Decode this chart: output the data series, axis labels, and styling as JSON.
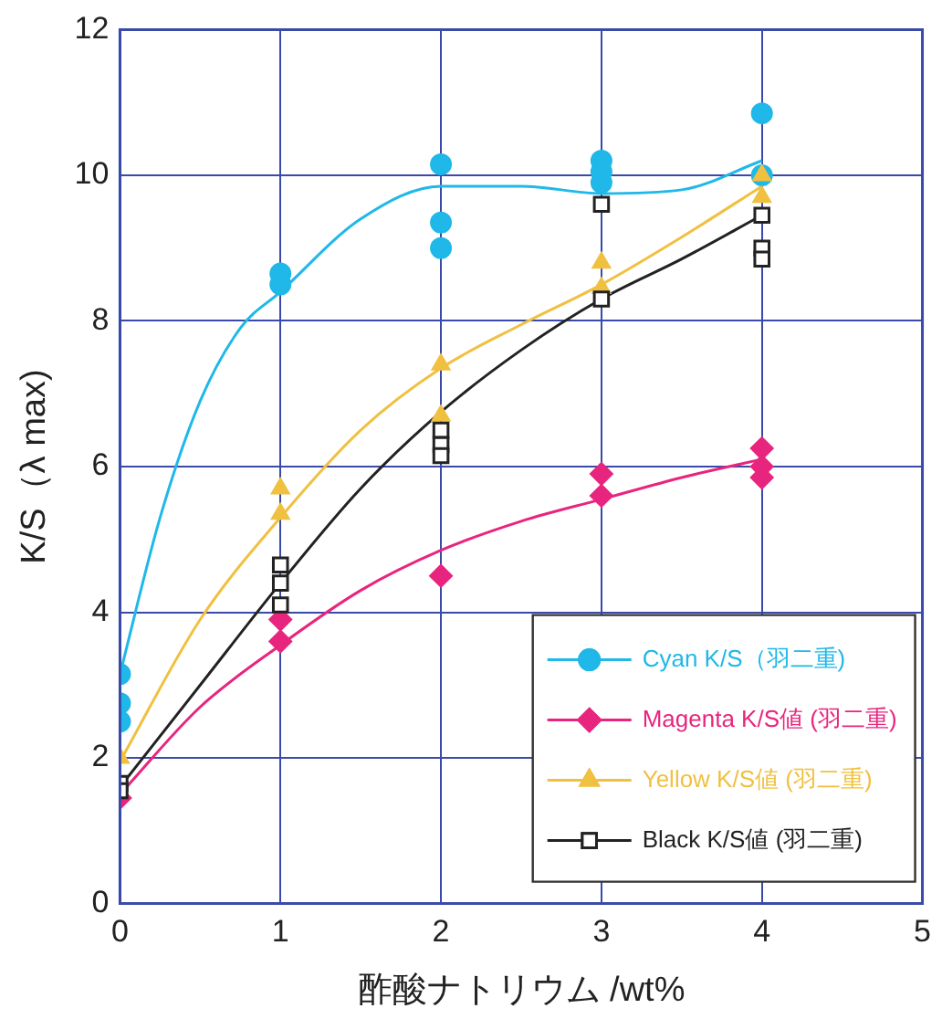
{
  "chart_data": {
    "type": "scatter",
    "xlabel": "酢酸ナトリウム /wt%",
    "ylabel": "K/S（λ max)",
    "xlim": [
      0,
      5
    ],
    "xticks": [
      0,
      1,
      2,
      3,
      4,
      5
    ],
    "ylim": [
      0,
      12
    ],
    "yticks": [
      0,
      2,
      4,
      6,
      8,
      10,
      12
    ],
    "grid": true,
    "legend": "bottom right",
    "series": [
      {
        "name": "Cyan K/S（羽二重)",
        "color": "#1fb8e8",
        "marker": "circle",
        "x": [
          0,
          0,
          0,
          1,
          1,
          2,
          2,
          2,
          3,
          3,
          3,
          4,
          4
        ],
        "values": [
          3.15,
          2.75,
          2.5,
          8.65,
          8.5,
          10.15,
          9.35,
          9.0,
          10.2,
          10.05,
          9.9,
          10.85,
          10.0
        ]
      },
      {
        "name": "Magenta K/S値 (羽二重)",
        "color": "#e8257e",
        "marker": "diamond",
        "x": [
          0,
          1,
          1,
          2,
          3,
          3,
          4,
          4,
          4
        ],
        "values": [
          1.45,
          3.9,
          3.6,
          4.5,
          5.9,
          5.6,
          6.25,
          6.0,
          5.85
        ]
      },
      {
        "name": "Yellow K/S値 (羽二重)",
        "color": "#f0c040",
        "marker": "triangle",
        "x": [
          0,
          1,
          1,
          2,
          2,
          3,
          3,
          4,
          4
        ],
        "values": [
          2.0,
          5.7,
          5.35,
          7.4,
          6.7,
          8.8,
          8.45,
          10.0,
          9.7
        ]
      },
      {
        "name": "Black K/S値 (羽二重)",
        "color": "#222222",
        "marker": "square",
        "x": [
          0,
          0,
          1,
          1,
          1,
          2,
          2,
          2,
          3,
          3,
          4,
          4,
          4
        ],
        "values": [
          1.65,
          1.55,
          4.65,
          4.4,
          4.1,
          6.5,
          6.3,
          6.15,
          9.6,
          8.3,
          9.45,
          9.0,
          8.85
        ]
      },
      {
        "type": "line",
        "color": "#1fb8e8",
        "marker": "none",
        "x": [
          0,
          0.25,
          0.5,
          0.75,
          1,
          1.5,
          2,
          2.5,
          3,
          3.5,
          4
        ],
        "values": [
          3.15,
          5.3,
          6.9,
          7.9,
          8.4,
          9.4,
          9.85,
          9.85,
          9.75,
          9.8,
          10.2
        ]
      },
      {
        "type": "line",
        "color": "#e8257e",
        "marker": "none",
        "x": [
          0,
          0.5,
          1,
          1.5,
          2,
          2.5,
          3,
          3.5,
          4
        ],
        "values": [
          1.5,
          2.7,
          3.55,
          4.3,
          4.85,
          5.25,
          5.55,
          5.85,
          6.1
        ]
      },
      {
        "type": "line",
        "color": "#f0c040",
        "marker": "none",
        "x": [
          0,
          0.5,
          1,
          1.5,
          2,
          2.5,
          3,
          3.5,
          4
        ],
        "values": [
          1.95,
          3.9,
          5.3,
          6.5,
          7.35,
          7.95,
          8.5,
          9.15,
          9.85
        ]
      },
      {
        "type": "line",
        "color": "#222222",
        "marker": "none",
        "x": [
          0,
          0.5,
          1,
          1.5,
          2,
          2.5,
          3,
          3.5,
          4
        ],
        "values": [
          1.6,
          3.0,
          4.4,
          5.7,
          6.75,
          7.6,
          8.3,
          8.85,
          9.45
        ]
      }
    ]
  }
}
